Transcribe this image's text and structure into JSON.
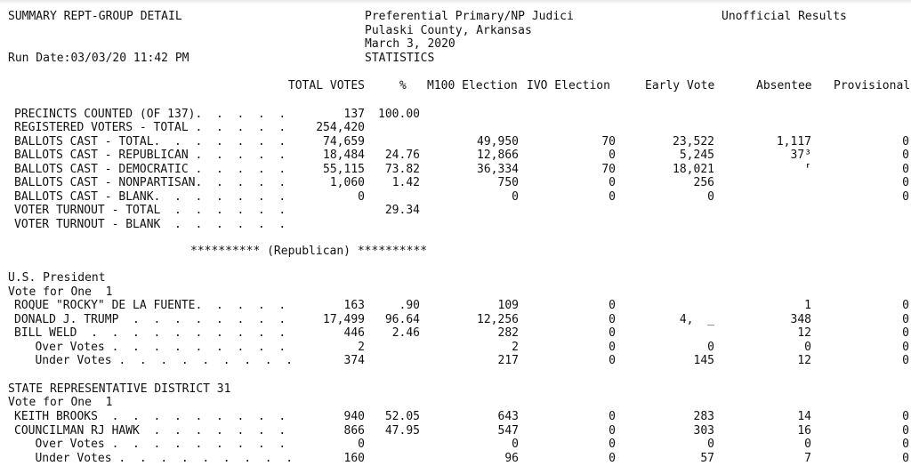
{
  "report": {
    "title": "SUMMARY REPT-GROUP DETAIL",
    "run_date": "Run Date:03/03/20 11:42 PM",
    "election": "Preferential Primary/NP Judici",
    "county": "Pulaski County, Arkansas",
    "date": "March 3, 2020",
    "section": "STATISTICS",
    "status": "Unofficial Results"
  },
  "columns": [
    "TOTAL VOTES",
    "%",
    "M100 Election",
    "IVO Election",
    "Early Vote",
    "Absentee",
    "Provisional"
  ],
  "statistics": [
    {
      "label": "PRECINCTS COUNTED (OF 137).  .  .  .  .",
      "total": "137",
      "pct": "100.00",
      "m100": "",
      "ivo": "",
      "early": "",
      "absentee": "",
      "provisional": ""
    },
    {
      "label": "REGISTERED VOTERS - TOTAL .  .  .  .  .",
      "total": "254,420",
      "pct": "",
      "m100": "",
      "ivo": "",
      "early": "",
      "absentee": "",
      "provisional": ""
    },
    {
      "label": "BALLOTS CAST - TOTAL.  .  .  .  .  .  .",
      "total": "74,659",
      "pct": "",
      "m100": "49,950",
      "ivo": "70",
      "early": "23,522",
      "absentee": "1,117",
      "provisional": "0"
    },
    {
      "label": "BALLOTS CAST - REPUBLICAN .  .  .  .  .",
      "total": "18,484",
      "pct": "24.76",
      "m100": "12,866",
      "ivo": "0",
      "early": "5,245",
      "absentee": "37³",
      "provisional": "0"
    },
    {
      "label": "BALLOTS CAST - DEMOCRATIC .  .  .  .  .",
      "total": "55,115",
      "pct": "73.82",
      "m100": "36,334",
      "ivo": "70",
      "early": "18,021",
      "absentee": "⸢",
      "provisional": "0"
    },
    {
      "label": "BALLOTS CAST - NONPARTISAN.  .  .  .  .",
      "total": "1,060",
      "pct": "1.42",
      "m100": "750",
      "ivo": "0",
      "early": "256",
      "absentee": "",
      "provisional": "0"
    },
    {
      "label": "BALLOTS CAST - BLANK.  .  .  .  .  .  .",
      "total": "0",
      "pct": "",
      "m100": "0",
      "ivo": "0",
      "early": "0",
      "absentee": "",
      "provisional": "0"
    },
    {
      "label": "VOTER TURNOUT - TOTAL  .  .  .  .  .  .",
      "total": "",
      "pct": "29.34",
      "m100": "",
      "ivo": "",
      "early": "",
      "absentee": "",
      "provisional": ""
    },
    {
      "label": "VOTER TURNOUT - BLANK  .  .  .  .  .  .",
      "total": "",
      "pct": "",
      "m100": "",
      "ivo": "",
      "early": "",
      "absentee": "",
      "provisional": ""
    }
  ],
  "party_banner": "********** (Republican) **********",
  "race1": {
    "name": "U.S. President",
    "vote_for": "Vote for One  1",
    "rows": [
      {
        "label": "ROQUE \"ROCKY\" DE LA FUENTE.  .  .  .  .",
        "total": "163",
        "pct": ".90",
        "m100": "109",
        "ivo": "0",
        "early": "",
        "absentee": "1",
        "provisional": "0"
      },
      {
        "label": "DONALD J. TRUMP  .  .  .  .  .  .  .  .",
        "total": "17,499",
        "pct": "96.64",
        "m100": "12,256",
        "ivo": "0",
        "early": "4,  _",
        "absentee": "348",
        "provisional": "0"
      },
      {
        "label": "BILL WELD  .  .  .  .  .  .  .  .  .  .",
        "total": "446",
        "pct": "2.46",
        "m100": "282",
        "ivo": "0",
        "early": "",
        "absentee": "12",
        "provisional": "0"
      },
      {
        "label": "   Over Votes .  .  .  .  .  .  .  .  .",
        "total": "2",
        "pct": "",
        "m100": "2",
        "ivo": "0",
        "early": "0",
        "absentee": "0",
        "provisional": "0"
      },
      {
        "label": "   Under Votes .  .  .  .  .  .  .  .  .",
        "total": "374",
        "pct": "",
        "m100": "217",
        "ivo": "0",
        "early": "145",
        "absentee": "12",
        "provisional": "0"
      }
    ]
  },
  "race2": {
    "name": "STATE REPRESENTATIVE DISTRICT 31",
    "vote_for": "Vote for One  1",
    "rows": [
      {
        "label": "KEITH BROOKS  .  .  .  .  .  .  .  .  .",
        "total": "940",
        "pct": "52.05",
        "m100": "643",
        "ivo": "0",
        "early": "283",
        "absentee": "14",
        "provisional": "0"
      },
      {
        "label": "COUNCILMAN RJ HAWK  .  .  .  .  .  .  .",
        "total": "866",
        "pct": "47.95",
        "m100": "547",
        "ivo": "0",
        "early": "303",
        "absentee": "16",
        "provisional": "0"
      },
      {
        "label": "   Over Votes .  .  .  .  .  .  .  .  .",
        "total": "0",
        "pct": "",
        "m100": "0",
        "ivo": "0",
        "early": "0",
        "absentee": "0",
        "provisional": "0"
      },
      {
        "label": "   Under Votes .  .  .  .  .  .  .  .  .",
        "total": "160",
        "pct": "",
        "m100": "96",
        "ivo": "0",
        "early": "57",
        "absentee": "7",
        "provisional": "0"
      }
    ]
  }
}
